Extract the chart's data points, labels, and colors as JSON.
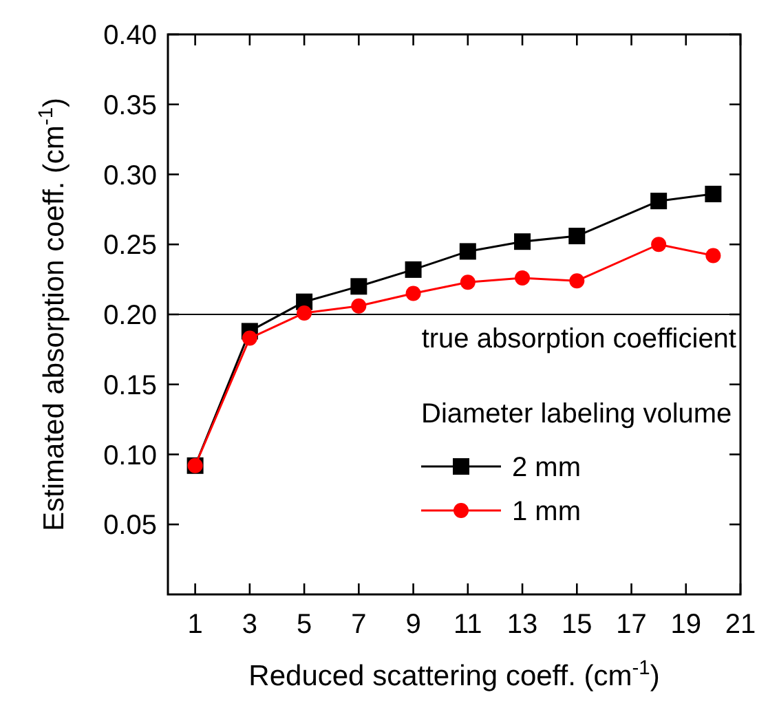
{
  "chart_data": {
    "type": "line",
    "xlabel": "Reduced scattering coeff. (cm$^{-1}$)",
    "ylabel": "Estimated absorption coeff. (cm$^{-1}$)",
    "x": [
      1,
      3,
      5,
      7,
      9,
      11,
      13,
      15,
      18,
      20
    ],
    "series": [
      {
        "name": "2 mm",
        "color": "#000000",
        "marker": "square",
        "values": [
          0.092,
          0.188,
          0.209,
          0.22,
          0.232,
          0.245,
          0.252,
          0.256,
          0.281,
          0.286
        ]
      },
      {
        "name": "1 mm",
        "color": "#ff0000",
        "marker": "circle",
        "values": [
          0.092,
          0.183,
          0.201,
          0.206,
          0.215,
          0.223,
          0.226,
          0.224,
          0.25,
          0.242
        ]
      }
    ],
    "xlim": [
      0,
      21
    ],
    "xticks": [
      1,
      3,
      5,
      7,
      9,
      11,
      13,
      15,
      17,
      19,
      21
    ],
    "ylim": [
      0,
      0.4
    ],
    "yticks": [
      0.05,
      {
        "value": 0.1,
        "label": "0.10"
      },
      0.15,
      {
        "value": 0.2,
        "label": "0.20"
      },
      0.25,
      {
        "value": 0.3,
        "label": "0.30"
      },
      0.35,
      {
        "value": 0.4,
        "label": "0.40"
      }
    ],
    "ref_lines": [
      {
        "axis": "y",
        "value": 0.2,
        "label": "true absorption coefficient",
        "color": "#000000"
      }
    ],
    "legend": "bottom right",
    "legend_title": "Diameter labeling volume",
    "grid": false,
    "line_style": "solid"
  }
}
